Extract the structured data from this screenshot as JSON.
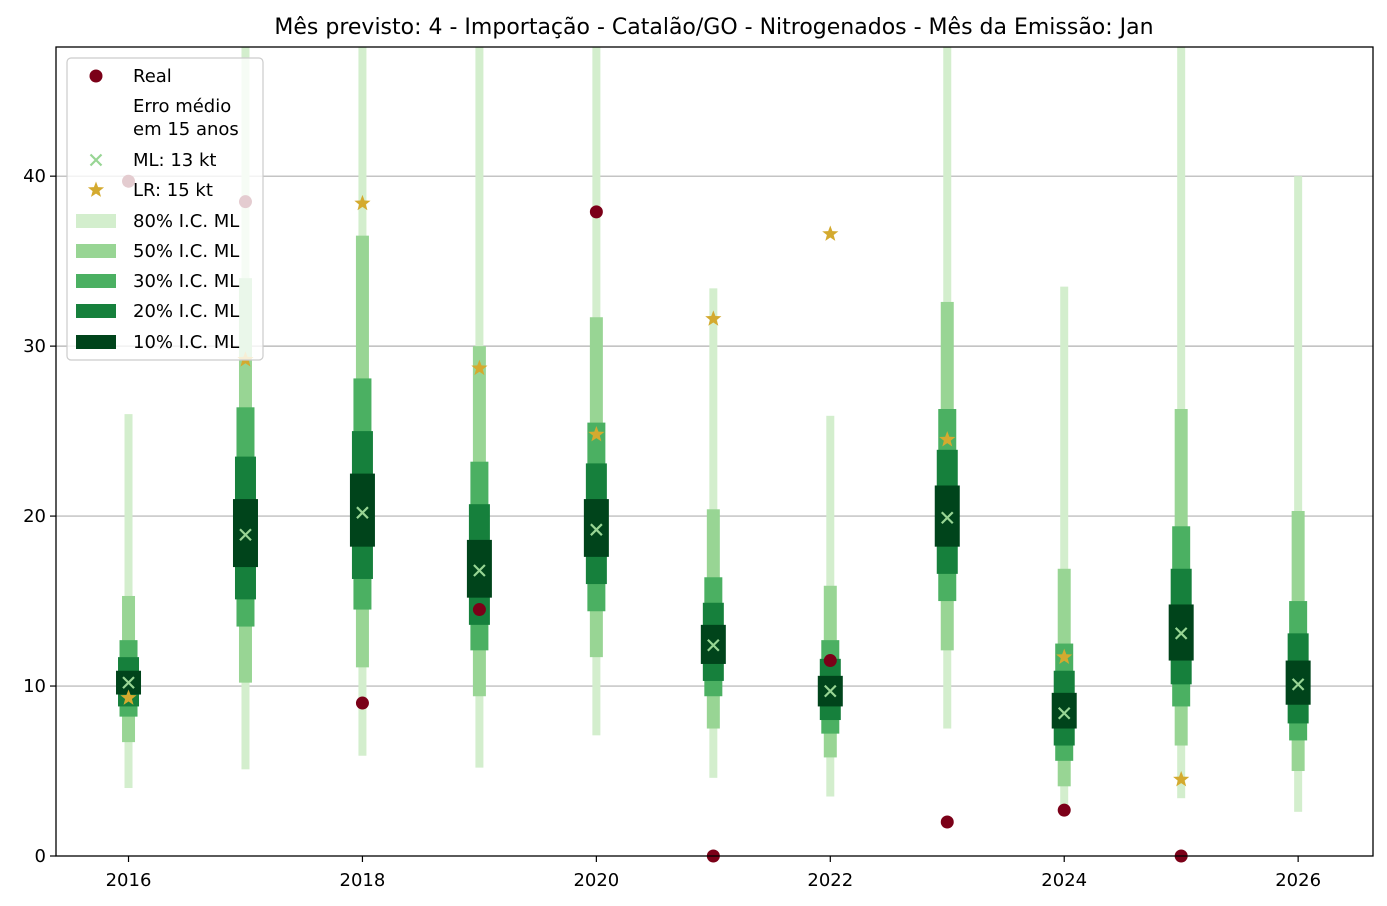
{
  "chart_data": {
    "type": "box-interval",
    "title": "Mês previsto: 4 - Importação - Catalão/GO - Nitrogenados - Mês da Emissão: Jan",
    "xlabel": "",
    "ylabel": "",
    "xlim": [
      2015.38,
      2026.64
    ],
    "ylim": [
      0,
      47.6
    ],
    "x_ticks": [
      "2016",
      "2018",
      "2020",
      "2022",
      "2024",
      "2026"
    ],
    "y_ticks": [
      "0",
      "10",
      "20",
      "30",
      "40"
    ],
    "grid": "horizontal",
    "legend_position": "top-left",
    "colors": {
      "real": "#7b0018",
      "ml_marker": "#98d594",
      "lr_marker": "#d4aa2f",
      "ci80": "#d3eecd",
      "ci50": "#98d594",
      "ci30": "#4bb062",
      "ci20": "#16803c",
      "ci10": "#00441b"
    },
    "legend": [
      {
        "key": "real",
        "label": "Real"
      },
      {
        "key": "note",
        "label": "Erro médio\nem 15 anos"
      },
      {
        "key": "ml",
        "label": "ML: 13 kt"
      },
      {
        "key": "lr",
        "label": "LR: 15 kt"
      },
      {
        "key": "ci80",
        "label": "80% I.C. ML"
      },
      {
        "key": "ci50",
        "label": "50% I.C. ML"
      },
      {
        "key": "ci30",
        "label": "30% I.C. ML"
      },
      {
        "key": "ci20",
        "label": "20% I.C. ML"
      },
      {
        "key": "ci10",
        "label": "10% I.C. ML"
      }
    ],
    "years": [
      2016,
      2017,
      2018,
      2019,
      2020,
      2021,
      2022,
      2023,
      2024,
      2025,
      2026
    ],
    "ml_forecast": [
      10.2,
      18.9,
      20.2,
      16.8,
      19.2,
      12.4,
      9.7,
      19.9,
      8.4,
      13.1,
      10.1
    ],
    "lr_forecast": [
      9.3,
      29.2,
      38.4,
      28.7,
      24.8,
      31.6,
      36.6,
      24.5,
      11.7,
      4.5,
      null
    ],
    "real": [
      39.7,
      38.5,
      9.0,
      14.5,
      37.9,
      0.0,
      11.5,
      2.0,
      2.7,
      0.0,
      null
    ],
    "intervals": {
      "ci80": [
        [
          4.0,
          26.0
        ],
        [
          5.1,
          47.6
        ],
        [
          5.9,
          47.6
        ],
        [
          5.2,
          47.6
        ],
        [
          7.1,
          47.6
        ],
        [
          4.6,
          33.4
        ],
        [
          3.5,
          25.9
        ],
        [
          7.5,
          47.6
        ],
        [
          2.9,
          33.5
        ],
        [
          3.4,
          47.6
        ],
        [
          2.6,
          40.0
        ]
      ],
      "ci50": [
        [
          6.7,
          15.3
        ],
        [
          10.2,
          34.0
        ],
        [
          11.1,
          36.5
        ],
        [
          9.4,
          30.0
        ],
        [
          11.7,
          31.7
        ],
        [
          7.5,
          20.4
        ],
        [
          5.8,
          15.9
        ],
        [
          12.1,
          32.6
        ],
        [
          4.1,
          16.9
        ],
        [
          6.5,
          26.3
        ],
        [
          5.0,
          20.3
        ]
      ],
      "ci30": [
        [
          8.2,
          12.7
        ],
        [
          13.5,
          26.4
        ],
        [
          14.5,
          28.1
        ],
        [
          12.1,
          23.2
        ],
        [
          14.4,
          25.5
        ],
        [
          9.4,
          16.4
        ],
        [
          7.2,
          12.7
        ],
        [
          15.0,
          26.3
        ],
        [
          5.6,
          12.5
        ],
        [
          8.8,
          19.4
        ],
        [
          6.8,
          15.0
        ]
      ],
      "ci20": [
        [
          8.8,
          11.7
        ],
        [
          15.1,
          23.5
        ],
        [
          16.3,
          25.0
        ],
        [
          13.6,
          20.7
        ],
        [
          16.0,
          23.1
        ],
        [
          10.3,
          14.9
        ],
        [
          8.0,
          11.6
        ],
        [
          16.6,
          23.9
        ],
        [
          6.5,
          10.9
        ],
        [
          10.1,
          16.9
        ],
        [
          7.8,
          13.1
        ]
      ],
      "ci10": [
        [
          9.5,
          10.9
        ],
        [
          17.0,
          21.0
        ],
        [
          18.2,
          22.5
        ],
        [
          15.2,
          18.6
        ],
        [
          17.6,
          21.0
        ],
        [
          11.3,
          13.6
        ],
        [
          8.8,
          10.6
        ],
        [
          18.2,
          21.8
        ],
        [
          7.5,
          9.6
        ],
        [
          11.5,
          14.8
        ],
        [
          8.9,
          11.5
        ]
      ]
    }
  }
}
